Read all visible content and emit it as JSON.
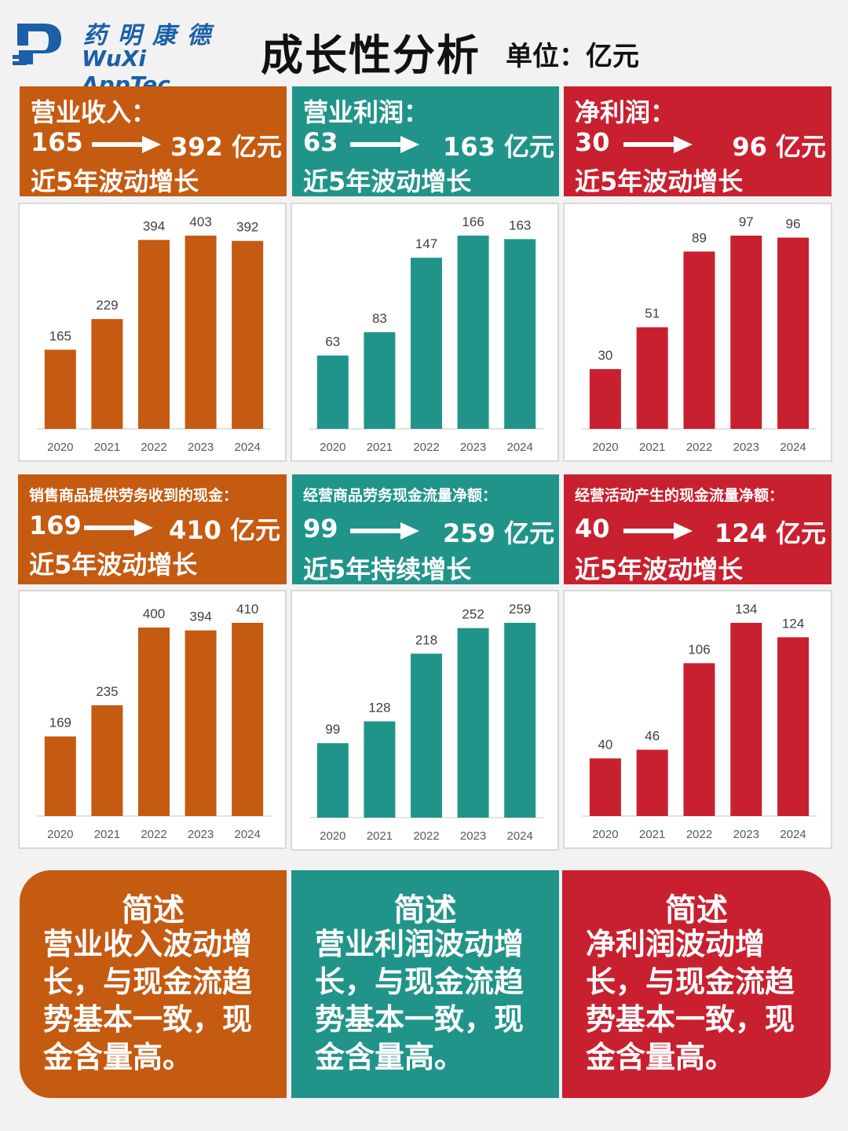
{
  "header": {
    "logo_cn": "药明康德",
    "logo_en": "WuXi AppTec",
    "title": "成长性分析",
    "unit": "单位：亿元"
  },
  "colors": {
    "orange": "#c55a11",
    "teal": "#21948a",
    "red": "#c9202f"
  },
  "sections": [
    {
      "title": "营业收入：",
      "from": "165",
      "to": "392 亿元",
      "summary": "近5年波动增长",
      "color": "orange",
      "small_title": false
    },
    {
      "title": "营业利润：",
      "from": "63",
      "to": "163  亿元",
      "summary": "近5年波动增长",
      "color": "teal",
      "small_title": false
    },
    {
      "title": "净利润：",
      "from": "30",
      "to": "96   亿元",
      "summary": "近5年波动增长",
      "color": "red",
      "small_title": false
    },
    {
      "title": "销售商品提供劳务收到的现金：",
      "from": "169",
      "to": "410  亿元",
      "summary": "近5年波动增长",
      "color": "orange",
      "small_title": true
    },
    {
      "title": "经营商品劳务现金流量净额：",
      "from": "99",
      "to": "259 亿元",
      "summary": "近5年持续增长",
      "color": "teal",
      "small_title": true
    },
    {
      "title": "经营活动产生的现金流量净额：",
      "from": "40",
      "to": "124  亿元",
      "summary": "近5年波动增长",
      "color": "red",
      "small_title": true
    }
  ],
  "chart_data": [
    {
      "type": "bar",
      "categories": [
        "2020",
        "2021",
        "2022",
        "2023",
        "2024"
      ],
      "values": [
        165,
        229,
        394,
        403,
        392
      ],
      "color": "#c55a11",
      "ylim": [
        0,
        403
      ]
    },
    {
      "type": "bar",
      "categories": [
        "2020",
        "2021",
        "2022",
        "2023",
        "2024"
      ],
      "values": [
        63,
        83,
        147,
        166,
        163
      ],
      "color": "#21948a",
      "ylim": [
        0,
        166
      ]
    },
    {
      "type": "bar",
      "categories": [
        "2020",
        "2021",
        "2022",
        "2023",
        "2024"
      ],
      "values": [
        30,
        51,
        89,
        97,
        96
      ],
      "color": "#c9202f",
      "ylim": [
        0,
        97
      ]
    },
    {
      "type": "bar",
      "categories": [
        "2020",
        "2021",
        "2022",
        "2023",
        "2024"
      ],
      "values": [
        169,
        235,
        400,
        394,
        410
      ],
      "color": "#c55a11",
      "ylim": [
        0,
        410
      ]
    },
    {
      "type": "bar",
      "categories": [
        "2020",
        "2021",
        "2022",
        "2023",
        "2024"
      ],
      "values": [
        99,
        128,
        218,
        252,
        259
      ],
      "color": "#21948a",
      "ylim": [
        0,
        259
      ]
    },
    {
      "type": "bar",
      "categories": [
        "2020",
        "2021",
        "2022",
        "2023",
        "2024"
      ],
      "values": [
        40,
        46,
        106,
        134,
        124
      ],
      "color": "#c9202f",
      "ylim": [
        0,
        134
      ]
    }
  ],
  "summaries": [
    {
      "title": "简述",
      "text": "营业收入波动增长，与现金流趋势基本一致，现金含量高。",
      "color": "orange"
    },
    {
      "title": "简述",
      "text": "营业利润波动增长，与现金流趋势基本一致，现金含量高。",
      "color": "teal"
    },
    {
      "title": "简述",
      "text": "净利润波动增长，与现金流趋势基本一致，现金含量高。",
      "color": "red"
    }
  ]
}
